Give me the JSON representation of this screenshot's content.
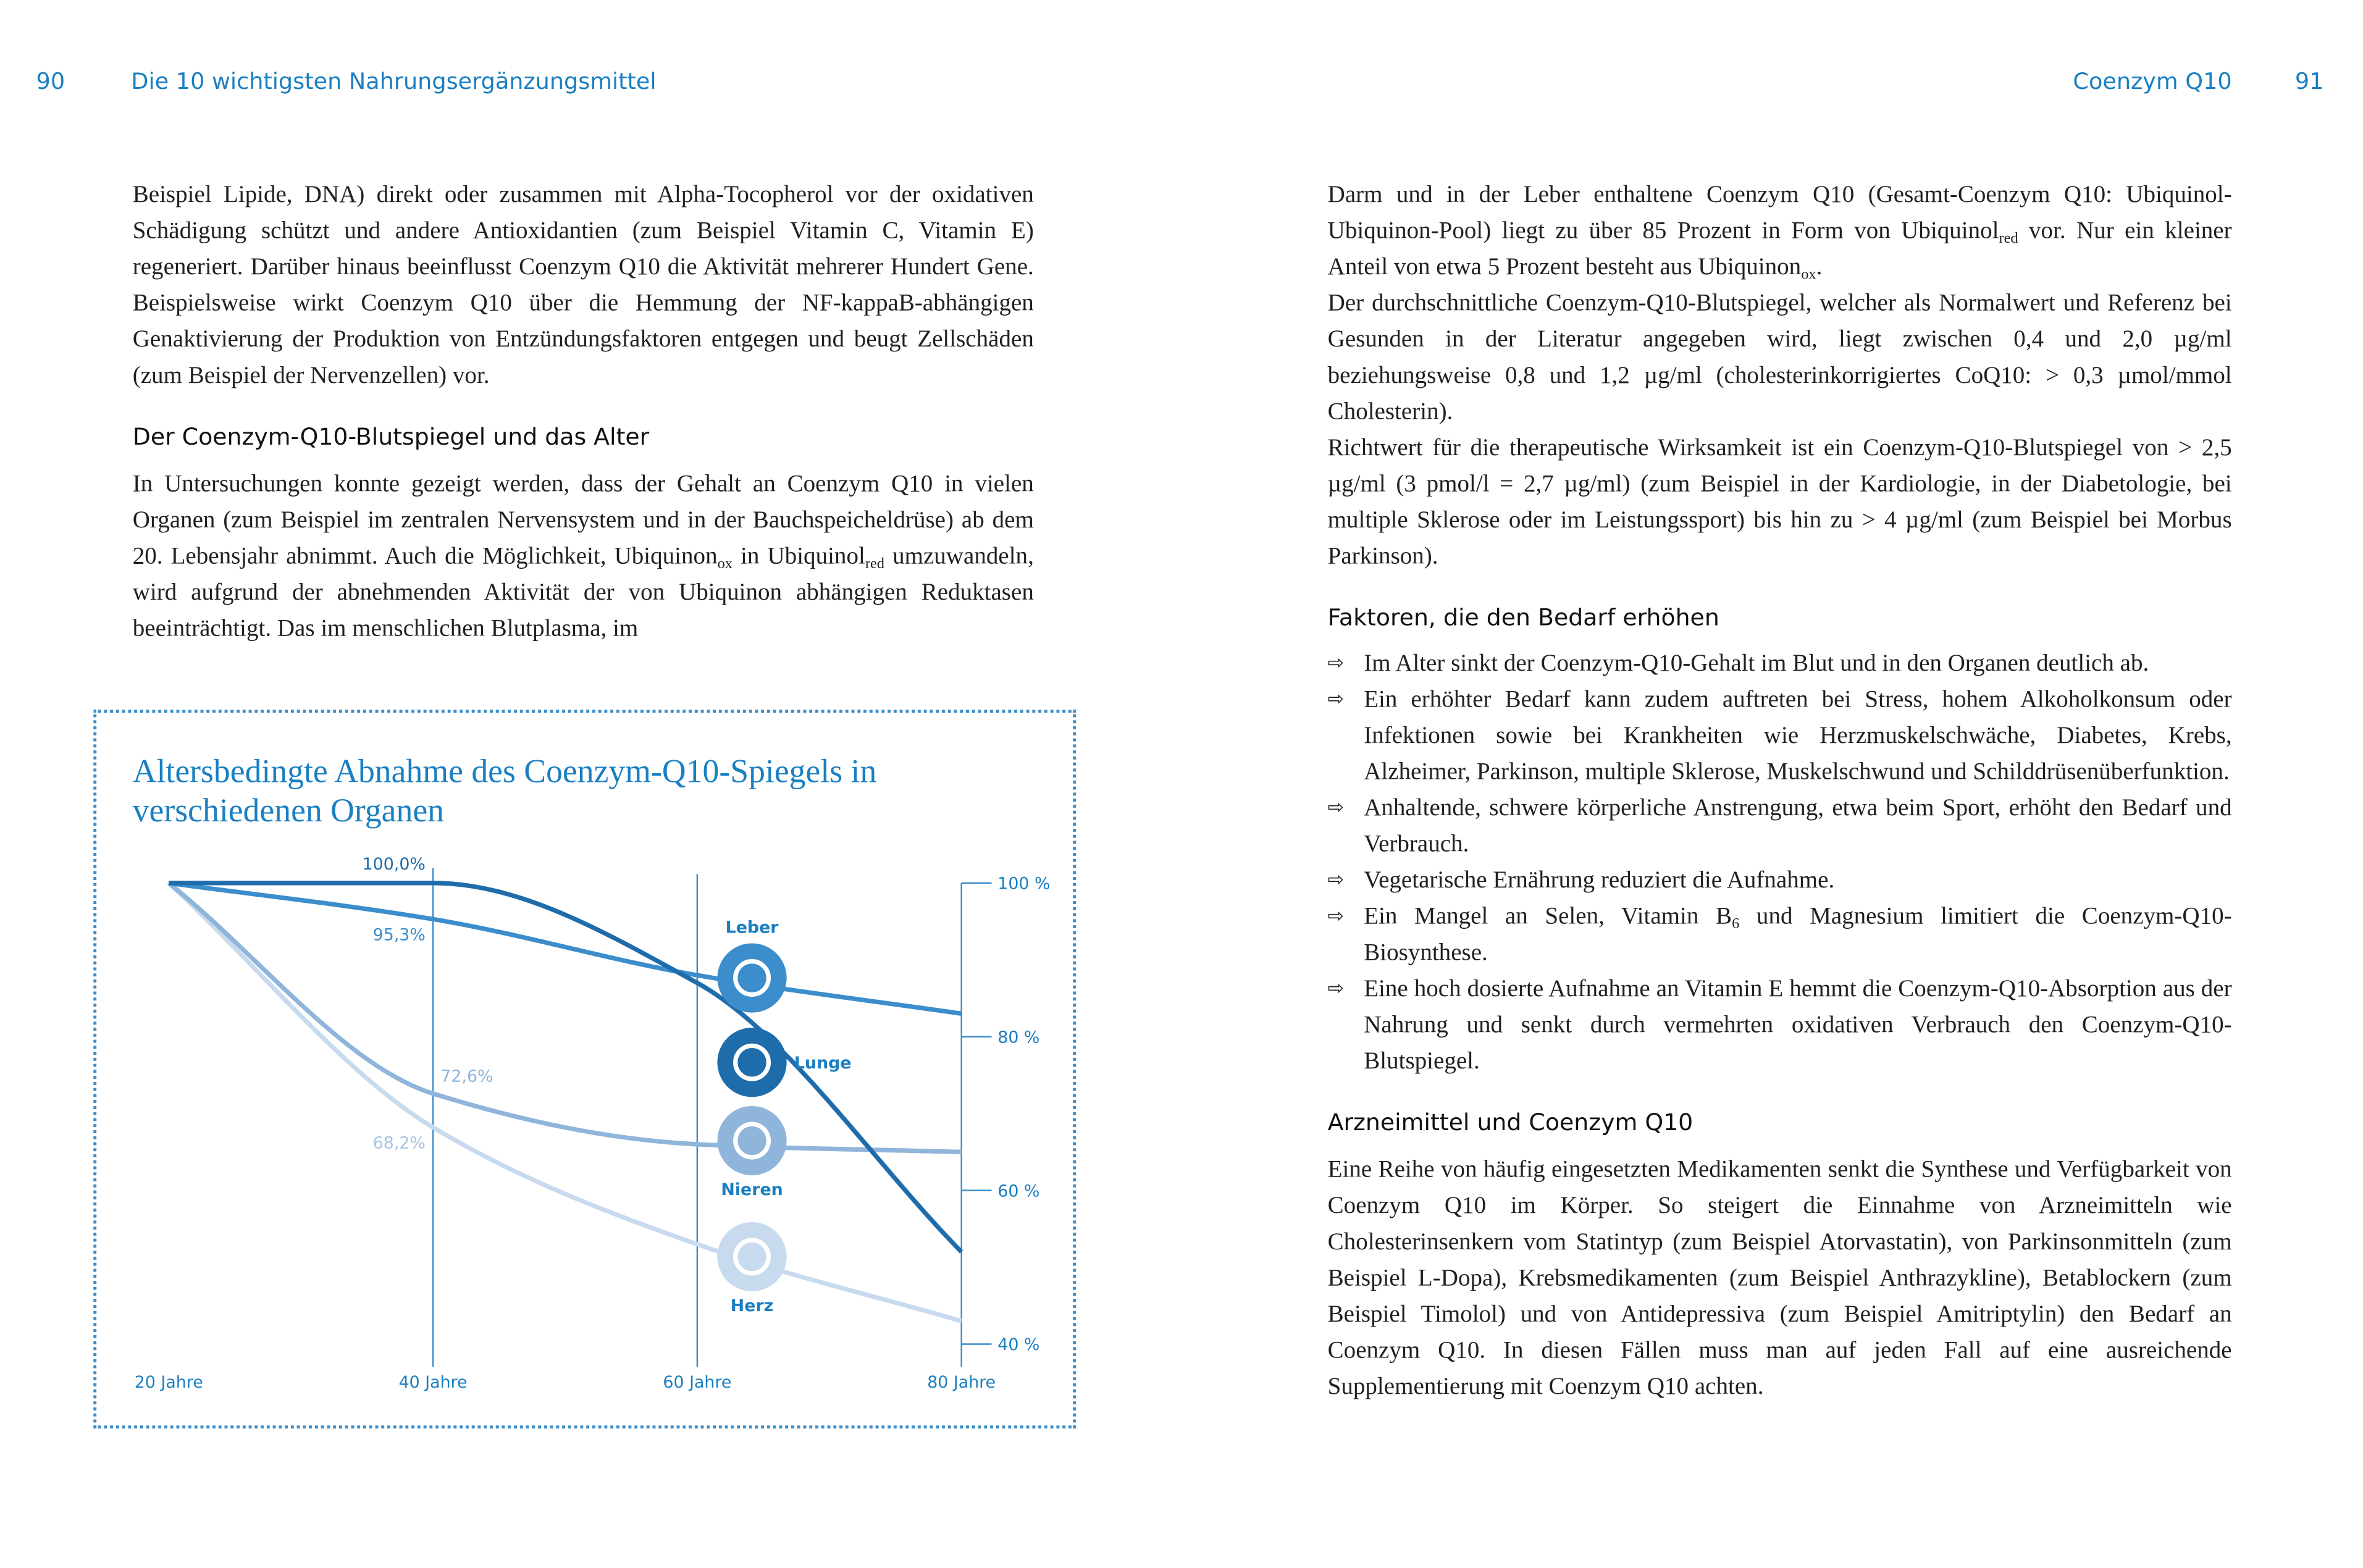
{
  "header": {
    "left_page_number": "90",
    "left_title": "Die 10 wichtigsten Nahrungsergänzungsmittel",
    "right_title": "Coenzym Q10",
    "right_page_number": "91"
  },
  "left": {
    "paragraph_1": [
      "Beispiel Lipide, DNA) direkt oder zusammen mit Alpha-Tocopherol vor der oxidativen Schädigung schützt und andere Antioxidantien (zum Beispiel Vitamin C, Vitamin E) regeneriert. Darüber hinaus beeinflusst Coenzym Q10 die Aktivität mehrerer Hundert Gene. Beispielsweise wirkt Coenzym Q10 über die Hemmung der NF-kappaB-abhängigen Genaktivierung der Produktion von Entzündungsfaktoren entgegen und beugt Zellschäden (zum Beispiel der Nervenzellen) vor."
    ],
    "heading": "Der Coenzym-Q10-Blutspiegel und das Alter",
    "paragraph_2": [
      "In Untersuchungen konnte gezeigt werden, dass der Gehalt an Coenzym Q10 in vielen Organen (zum Beispiel im zentralen Nervensystem und in der Bauchspeicheldrüse) ab dem 20. Lebensjahr abnimmt. Auch die Möglichkeit, Ubiquinon",
      {
        "sub": "ox"
      },
      " in Ubiquinol",
      {
        "sub": "red"
      },
      " umzuwandeln, wird aufgrund der abnehmenden Aktivität der von Ubiquinon abhängigen Reduktasen beeinträchtigt. Das im menschlichen Blutplasma, im"
    ]
  },
  "chart_data": {
    "type": "line",
    "title": "Altersbedingte Abnahme des Coenzym-Q10-Spiegels in verschiedenen Organen",
    "x": [
      20,
      40,
      60,
      80
    ],
    "xlim": [
      20,
      80
    ],
    "xticks": [
      {
        "value": 20,
        "label": "20 Jahre"
      },
      {
        "value": 40,
        "label": "40 Jahre"
      },
      {
        "value": 60,
        "label": "60 Jahre"
      },
      {
        "value": 80,
        "label": "80 Jahre"
      }
    ],
    "ylim": [
      40,
      100
    ],
    "yticks": [
      {
        "value": 100,
        "label": "100 %"
      },
      {
        "value": 80,
        "label": "80 %"
      },
      {
        "value": 60,
        "label": "60 %"
      },
      {
        "value": 40,
        "label": "40 %"
      }
    ],
    "series": [
      {
        "name": "Lunge",
        "color": "#1f6cab",
        "values": [
          100,
          100,
          87,
          52
        ],
        "value_labels": [
          null,
          "100,0%",
          null,
          null
        ]
      },
      {
        "name": "Leber",
        "color": "#3b8dcb",
        "values": [
          100,
          95.3,
          88,
          83
        ],
        "value_labels": [
          null,
          "95,3%",
          null,
          null
        ]
      },
      {
        "name": "Nieren",
        "color": "#8fb5db",
        "values": [
          100,
          72.6,
          66,
          65
        ],
        "value_labels": [
          null,
          "72,6%",
          null,
          null
        ]
      },
      {
        "name": "Herz",
        "color": "#c8daee",
        "values": [
          100,
          68.2,
          53,
          43
        ],
        "value_labels": [
          null,
          "68,2%",
          null,
          null
        ]
      }
    ]
  },
  "right": {
    "paragraph_1": [
      "Darm und in der Leber enthaltene Coenzym Q10 (Gesamt-Coenzym Q10: Ubiquinol-Ubiquinon-Pool) liegt zu über 85 Prozent in Form von Ubiquinol",
      {
        "sub": "red"
      },
      " vor. Nur ein kleiner Anteil von etwa 5 Prozent besteht aus Ubiquinon",
      {
        "sub": "ox"
      },
      "."
    ],
    "paragraph_2": [
      "Der durchschnittliche Coenzym-Q10-Blutspiegel, welcher als Normalwert und Referenz bei Gesunden in der Literatur angegeben wird, liegt zwischen 0,4 und 2,0 µg/ml beziehungsweise 0,8 und 1,2 µg/ml (cholesterinkorrigiertes CoQ10: > 0,3 µmol/mmol Cholesterin)."
    ],
    "paragraph_3": [
      "Richtwert für die therapeutische Wirksamkeit ist ein Coenzym-Q10-Blutspiegel von > 2,5 µg/ml (3 pmol/l = 2,7 µg/ml) (zum Beispiel in der Kardiologie, in der Diabetologie, bei multiple Sklerose oder im Leistungssport) bis hin zu > 4 µg/ml (zum Beispiel bei Morbus Parkinson)."
    ],
    "heading_1": "Faktoren, die den Bedarf erhöhen",
    "bullets": [
      [
        "Im Alter sinkt der Coenzym-Q10-Gehalt im Blut und in den Organen deutlich ab."
      ],
      [
        "Ein erhöhter Bedarf kann zudem auftreten bei Stress, hohem Alkoholkonsum oder Infektionen sowie bei Krankheiten wie Herzmuskelschwäche, Diabetes, Krebs, Alzheimer, Parkinson, multiple Sklerose, Muskelschwund und Schilddrüsenüberfunktion."
      ],
      [
        "Anhaltende, schwere körperliche Anstrengung, etwa beim Sport, erhöht den Bedarf und Verbrauch."
      ],
      [
        "Vegetarische Ernährung reduziert die Aufnahme."
      ],
      [
        "Ein Mangel an Selen, Vitamin B",
        {
          "sub": "6"
        },
        " und Magnesium limitiert die Coenzym-Q10-Biosynthese."
      ],
      [
        "Eine hoch dosierte Aufnahme an Vitamin E hemmt die Coenzym-Q10-Absorption aus der Nahrung und senkt durch vermehrten oxidativen Verbrauch den Coenzym-Q10-Blutspiegel."
      ]
    ],
    "heading_2": "Arzneimittel und Coenzym Q10",
    "paragraph_4": [
      "Eine Reihe von häufig eingesetzten Medikamenten senkt die Synthese und Verfügbarkeit von Coenzym Q10 im Körper. So steigert die Einnahme von Arzneimitteln wie Cholesterinsenkern vom Statintyp (zum Beispiel Atorvastatin), von Parkinsonmitteln (zum Beispiel L-Dopa), Krebsmedikamenten (zum Beispiel Anthrazykline), Betablockern (zum Beispiel Timolol) und von Antidepressiva (zum Beispiel Amitriptylin) den Bedarf an Coenzym Q10. In diesen Fällen muss man auf jeden Fall auf eine ausreichende Supplementierung mit Coenzym Q10 achten."
    ]
  }
}
